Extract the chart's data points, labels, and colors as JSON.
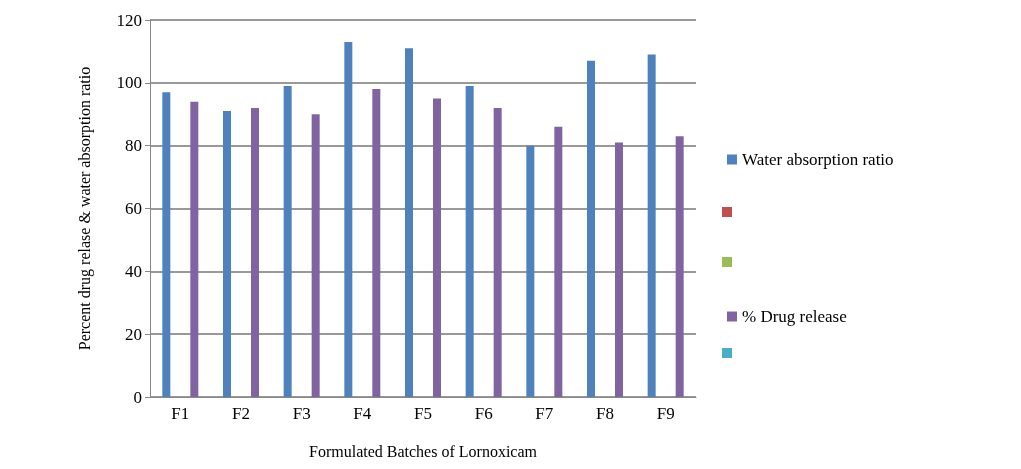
{
  "chart_data": {
    "type": "bar",
    "xlabel": "Formulated Batches of Lornoxicam",
    "ylabel": "Percent drug relase & water absorption ratio",
    "categories": [
      "F1",
      "F2",
      "F3",
      "F4",
      "F5",
      "F6",
      "F7",
      "F8",
      "F9"
    ],
    "series": [
      {
        "name": "Water absorption ratio",
        "color": "#4f81bd",
        "values": [
          97,
          91,
          99,
          113,
          111,
          99,
          80,
          107,
          109
        ]
      },
      {
        "name": "% Drug release",
        "color": "#8064a2",
        "values": [
          94,
          92,
          90,
          98,
          95,
          92,
          86,
          81,
          83
        ]
      }
    ],
    "ylim": [
      0,
      120
    ],
    "yticks": [
      0,
      20,
      40,
      60,
      80,
      100,
      120
    ],
    "grid": true,
    "legend": "right"
  }
}
